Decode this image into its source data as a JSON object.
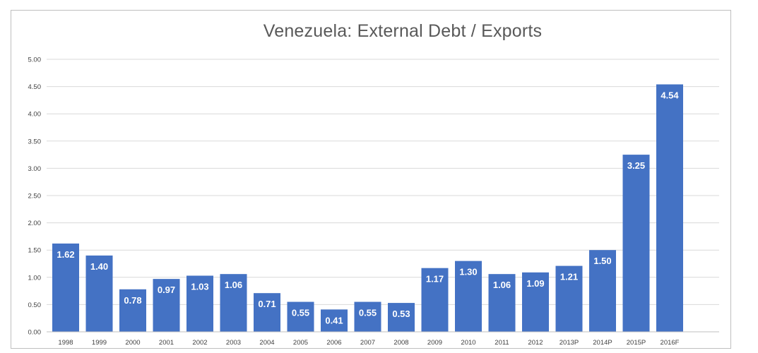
{
  "chart_data": {
    "type": "bar",
    "title": "Venezuela: External Debt / Exports",
    "xlabel": "",
    "ylabel": "",
    "categories": [
      "1998",
      "1999",
      "2000",
      "2001",
      "2002",
      "2003",
      "2004",
      "2005",
      "2006",
      "2007",
      "2008",
      "2009",
      "2010",
      "2011",
      "2012",
      "2013P",
      "2014P",
      "2015P",
      "2016F"
    ],
    "series": [
      {
        "values": [
          1.62,
          1.4,
          0.78,
          0.97,
          1.03,
          1.06,
          0.71,
          0.55,
          0.41,
          0.55,
          0.53,
          1.17,
          1.3,
          1.06,
          1.09,
          1.21,
          1.5,
          3.25,
          4.54
        ],
        "labels": [
          "1.62",
          "1.40",
          "0.78",
          "0.97",
          "1.03",
          "1.06",
          "0.71",
          "0.55",
          "0.41",
          "0.55",
          "0.53",
          "1.17",
          "1.30",
          "1.06",
          "1.09",
          "1.21",
          "1.50",
          "3.25",
          "4.54"
        ],
        "color": "#4472c4"
      }
    ],
    "ylim": [
      0,
      5
    ],
    "yticks": [
      "0.00",
      "0.50",
      "1.00",
      "1.50",
      "2.00",
      "2.50",
      "3.00",
      "3.50",
      "4.00",
      "4.50",
      "5.00"
    ],
    "grid": true,
    "gridColor": "#d9d9d9",
    "legend": "none"
  }
}
